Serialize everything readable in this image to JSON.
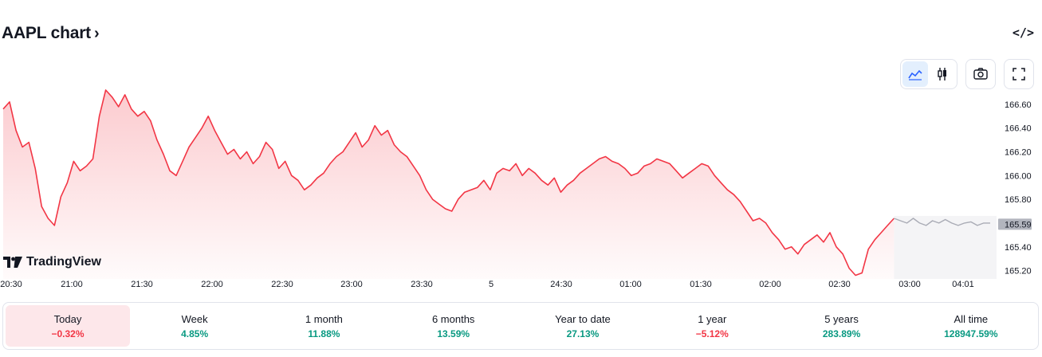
{
  "header": {
    "title": "AAPL chart",
    "chevron": "›",
    "embed_label": "</>"
  },
  "toolbar": {
    "buttons": [
      {
        "name": "area-chart-icon",
        "active": true
      },
      {
        "name": "candlestick-icon",
        "active": false
      },
      {
        "name": "camera-icon",
        "active": false
      },
      {
        "name": "fullscreen-icon",
        "active": false
      }
    ]
  },
  "logo": {
    "text": "TradingView"
  },
  "colors": {
    "line": "#f23645",
    "after_hours": "#a9abb5",
    "positive": "#089981",
    "negative": "#f23645"
  },
  "chart_data": {
    "type": "area",
    "title": "",
    "x_ticks": [
      "20:30",
      "21:00",
      "21:30",
      "22:00",
      "22:30",
      "23:00",
      "23:30",
      "5",
      "24:30",
      "01:00",
      "01:30",
      "02:00",
      "02:30",
      "03:00",
      "04:01"
    ],
    "y_ticks": [
      "166.60",
      "166.40",
      "166.20",
      "166.00",
      "165.80",
      "165.60",
      "165.40",
      "165.20"
    ],
    "ylim": [
      165.13,
      166.74
    ],
    "last_price": "165.59",
    "series": [
      {
        "session": "regular",
        "values": [
          166.56,
          166.62,
          166.38,
          166.24,
          166.28,
          166.06,
          165.74,
          165.64,
          165.58,
          165.82,
          165.94,
          166.12,
          166.04,
          166.08,
          166.14,
          166.5,
          166.72,
          166.66,
          166.58,
          166.68,
          166.56,
          166.5,
          166.54,
          166.46,
          166.3,
          166.18,
          166.04,
          166.0,
          166.12,
          166.24,
          166.32,
          166.4,
          166.5,
          166.38,
          166.28,
          166.18,
          166.22,
          166.14,
          166.2,
          166.1,
          166.16,
          166.28,
          166.22,
          166.06,
          166.12,
          166.0,
          165.96,
          165.88,
          165.92,
          165.98,
          166.02,
          166.1,
          166.16,
          166.2,
          166.28,
          166.36,
          166.24,
          166.3,
          166.42,
          166.34,
          166.38,
          166.26,
          166.2,
          166.16,
          166.08,
          166.0,
          165.88,
          165.8,
          165.76,
          165.72,
          165.7,
          165.8,
          165.86,
          165.88,
          165.9,
          165.96,
          165.88,
          166.02,
          166.06,
          166.04,
          166.1,
          166.0,
          166.06,
          166.02,
          165.96,
          165.92,
          165.98,
          165.86,
          165.92,
          165.96,
          166.02,
          166.06,
          166.1,
          166.14,
          166.16,
          166.12,
          166.1,
          166.06,
          166.0,
          166.02,
          166.08,
          166.1,
          166.14,
          166.12,
          166.1,
          166.04,
          165.98,
          166.02,
          166.06,
          166.1,
          166.08,
          166.0,
          165.94,
          165.88,
          165.84,
          165.78,
          165.7,
          165.62,
          165.64,
          165.6,
          165.52,
          165.46,
          165.38,
          165.4,
          165.34,
          165.42,
          165.46,
          165.5,
          165.44,
          165.52,
          165.4,
          165.34,
          165.22,
          165.16,
          165.18,
          165.38,
          165.46,
          165.52,
          165.58,
          165.64
        ]
      },
      {
        "session": "after-hours",
        "values": [
          165.64,
          165.62,
          165.6,
          165.64,
          165.6,
          165.58,
          165.62,
          165.6,
          165.63,
          165.6,
          165.58,
          165.6,
          165.61,
          165.58,
          165.6,
          165.6
        ]
      }
    ]
  },
  "periods": [
    {
      "label": "Today",
      "value": "−0.32%",
      "trend": "neg",
      "active": true
    },
    {
      "label": "Week",
      "value": "4.85%",
      "trend": "pos"
    },
    {
      "label": "1 month",
      "value": "11.88%",
      "trend": "pos"
    },
    {
      "label": "6 months",
      "value": "13.59%",
      "trend": "pos"
    },
    {
      "label": "Year to date",
      "value": "27.13%",
      "trend": "pos"
    },
    {
      "label": "1 year",
      "value": "−5.12%",
      "trend": "neg"
    },
    {
      "label": "5 years",
      "value": "283.89%",
      "trend": "pos"
    },
    {
      "label": "All time",
      "value": "128947.59%",
      "trend": "pos"
    }
  ]
}
